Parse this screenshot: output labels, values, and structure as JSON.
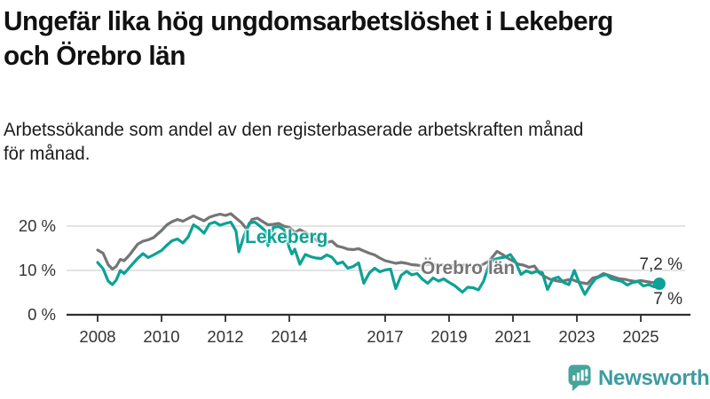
{
  "title": "Ungefär lika hög ungdomsarbetslöshet i Lekeberg\noch Örebro län",
  "subtitle": "Arbetssökande som andel av den registerbaserade arbetskraften månad\nför månad.",
  "branding": {
    "logo_text": "Newsworthy",
    "logo_icon": "bar-chart-speech-bubble"
  },
  "colors": {
    "lekeberg": "#0ca295",
    "orebro": "#757575",
    "grid": "#dadada",
    "axis": "#2e2e2e",
    "tick_text": "#333333",
    "logo_bubble": "#46a49b",
    "logo_wordmark": "#3e9ba2"
  },
  "chart_data": {
    "type": "line",
    "title": "Ungefär lika hög ungdomsarbetslöshet i Lekeberg och Örebro län",
    "subtitle": "Arbetssökande som andel av den registerbaserade arbetskraften månad för månad.",
    "unit": "%",
    "xlabel": "",
    "ylabel": "",
    "grid": "horizontal",
    "legend_position": "inline-labels",
    "xlim": [
      2007.0,
      2026.5
    ],
    "ylim": [
      0,
      24
    ],
    "x_ticks": [
      2008,
      2010,
      2012,
      2014,
      2017,
      2019,
      2021,
      2023,
      2025
    ],
    "y_ticks": [
      {
        "value": 0,
        "label": "0 %"
      },
      {
        "value": 10,
        "label": "10 %"
      },
      {
        "value": 20,
        "label": "20 %"
      }
    ],
    "series": [
      {
        "name": "Lekeberg",
        "color": "#0ca295",
        "end_label": "7 %",
        "latest_value": 7.0,
        "end_dot": true,
        "points": [
          [
            2008.0,
            11.8
          ],
          [
            2008.17,
            10.4
          ],
          [
            2008.33,
            7.6
          ],
          [
            2008.46,
            6.8
          ],
          [
            2008.58,
            7.8
          ],
          [
            2008.71,
            10.0
          ],
          [
            2008.83,
            9.3
          ],
          [
            2009.0,
            10.7
          ],
          [
            2009.25,
            12.7
          ],
          [
            2009.42,
            13.8
          ],
          [
            2009.58,
            12.9
          ],
          [
            2009.75,
            13.5
          ],
          [
            2010.0,
            14.5
          ],
          [
            2010.17,
            15.7
          ],
          [
            2010.33,
            16.7
          ],
          [
            2010.5,
            17.1
          ],
          [
            2010.67,
            16.2
          ],
          [
            2010.83,
            17.5
          ],
          [
            2011.0,
            20.3
          ],
          [
            2011.17,
            19.5
          ],
          [
            2011.33,
            18.4
          ],
          [
            2011.5,
            20.5
          ],
          [
            2011.67,
            20.9
          ],
          [
            2011.83,
            20.2
          ],
          [
            2012.0,
            20.6
          ],
          [
            2012.17,
            20.9
          ],
          [
            2012.33,
            18.9
          ],
          [
            2012.42,
            14.2
          ],
          [
            2012.58,
            17.8
          ],
          [
            2012.75,
            20.7
          ],
          [
            2012.92,
            20.9
          ],
          [
            2013.08,
            20.0
          ],
          [
            2013.25,
            18.9
          ],
          [
            2013.33,
            15.6
          ],
          [
            2013.5,
            19.7
          ],
          [
            2013.67,
            19.9
          ],
          [
            2013.83,
            19.2
          ],
          [
            2014.0,
            15.1
          ],
          [
            2014.08,
            13.7
          ],
          [
            2014.17,
            14.8
          ],
          [
            2014.33,
            11.4
          ],
          [
            2014.5,
            13.6
          ],
          [
            2014.67,
            13.1
          ],
          [
            2014.83,
            12.8
          ],
          [
            2015.0,
            12.7
          ],
          [
            2015.17,
            13.5
          ],
          [
            2015.33,
            13.0
          ],
          [
            2015.5,
            11.5
          ],
          [
            2015.67,
            11.9
          ],
          [
            2015.83,
            10.5
          ],
          [
            2016.0,
            10.9
          ],
          [
            2016.17,
            11.7
          ],
          [
            2016.33,
            7.1
          ],
          [
            2016.5,
            9.4
          ],
          [
            2016.67,
            10.5
          ],
          [
            2016.83,
            9.7
          ],
          [
            2017.0,
            10.1
          ],
          [
            2017.17,
            10.3
          ],
          [
            2017.33,
            5.9
          ],
          [
            2017.5,
            8.9
          ],
          [
            2017.67,
            9.8
          ],
          [
            2017.83,
            9.0
          ],
          [
            2018.0,
            9.3
          ],
          [
            2018.17,
            8.0
          ],
          [
            2018.33,
            7.1
          ],
          [
            2018.5,
            8.3
          ],
          [
            2018.67,
            7.6
          ],
          [
            2018.83,
            8.1
          ],
          [
            2019.0,
            7.3
          ],
          [
            2019.17,
            6.6
          ],
          [
            2019.42,
            5.1
          ],
          [
            2019.58,
            6.2
          ],
          [
            2019.75,
            6.1
          ],
          [
            2019.92,
            5.6
          ],
          [
            2020.08,
            7.6
          ],
          [
            2020.25,
            11.3
          ],
          [
            2020.42,
            12.5
          ],
          [
            2020.58,
            12.8
          ],
          [
            2020.75,
            13.0
          ],
          [
            2020.92,
            13.6
          ],
          [
            2021.08,
            11.9
          ],
          [
            2021.25,
            9.1
          ],
          [
            2021.42,
            9.9
          ],
          [
            2021.58,
            9.4
          ],
          [
            2021.75,
            9.8
          ],
          [
            2021.92,
            9.5
          ],
          [
            2022.08,
            5.7
          ],
          [
            2022.25,
            8.1
          ],
          [
            2022.42,
            8.5
          ],
          [
            2022.58,
            7.3
          ],
          [
            2022.75,
            6.8
          ],
          [
            2022.92,
            10.0
          ],
          [
            2023.08,
            7.1
          ],
          [
            2023.25,
            4.6
          ],
          [
            2023.42,
            6.6
          ],
          [
            2023.58,
            8.1
          ],
          [
            2023.75,
            8.7
          ],
          [
            2023.92,
            9.1
          ],
          [
            2024.08,
            8.1
          ],
          [
            2024.25,
            7.8
          ],
          [
            2024.42,
            7.5
          ],
          [
            2024.58,
            6.7
          ],
          [
            2024.75,
            7.3
          ],
          [
            2024.92,
            7.5
          ],
          [
            2025.08,
            6.5
          ],
          [
            2025.25,
            6.8
          ],
          [
            2025.42,
            6.3
          ],
          [
            2025.58,
            7.0
          ]
        ]
      },
      {
        "name": "Örebro län",
        "color": "#757575",
        "end_label": "7,2 %",
        "latest_value": 7.2,
        "end_dot": false,
        "points": [
          [
            2008.0,
            14.6
          ],
          [
            2008.17,
            13.9
          ],
          [
            2008.33,
            11.3
          ],
          [
            2008.46,
            10.3
          ],
          [
            2008.58,
            10.9
          ],
          [
            2008.71,
            12.5
          ],
          [
            2008.83,
            12.2
          ],
          [
            2009.0,
            13.5
          ],
          [
            2009.25,
            15.9
          ],
          [
            2009.42,
            16.6
          ],
          [
            2009.58,
            16.9
          ],
          [
            2009.75,
            17.4
          ],
          [
            2010.0,
            19.0
          ],
          [
            2010.17,
            20.3
          ],
          [
            2010.33,
            21.0
          ],
          [
            2010.5,
            21.5
          ],
          [
            2010.67,
            21.1
          ],
          [
            2010.83,
            21.7
          ],
          [
            2011.0,
            22.3
          ],
          [
            2011.17,
            21.7
          ],
          [
            2011.33,
            21.2
          ],
          [
            2011.5,
            22.0
          ],
          [
            2011.67,
            22.4
          ],
          [
            2011.83,
            22.7
          ],
          [
            2012.0,
            22.4
          ],
          [
            2012.17,
            22.8
          ],
          [
            2012.33,
            21.8
          ],
          [
            2012.5,
            20.8
          ],
          [
            2012.67,
            19.3
          ],
          [
            2012.83,
            21.5
          ],
          [
            2013.0,
            21.8
          ],
          [
            2013.17,
            21.0
          ],
          [
            2013.33,
            20.3
          ],
          [
            2013.5,
            20.4
          ],
          [
            2013.67,
            20.6
          ],
          [
            2013.83,
            20.0
          ],
          [
            2014.0,
            19.7
          ],
          [
            2014.17,
            18.6
          ],
          [
            2014.33,
            19.2
          ],
          [
            2014.5,
            18.6
          ],
          [
            2014.67,
            17.5
          ],
          [
            2014.83,
            17.0
          ],
          [
            2015.0,
            16.0
          ],
          [
            2015.17,
            16.3
          ],
          [
            2015.33,
            16.6
          ],
          [
            2015.5,
            15.5
          ],
          [
            2015.67,
            15.2
          ],
          [
            2015.83,
            14.8
          ],
          [
            2016.0,
            14.7
          ],
          [
            2016.17,
            14.9
          ],
          [
            2016.33,
            14.4
          ],
          [
            2016.5,
            13.9
          ],
          [
            2016.67,
            13.5
          ],
          [
            2016.83,
            12.8
          ],
          [
            2017.0,
            12.2
          ],
          [
            2017.17,
            11.9
          ],
          [
            2017.33,
            11.6
          ],
          [
            2017.5,
            11.8
          ],
          [
            2017.67,
            11.6
          ],
          [
            2017.83,
            11.3
          ],
          [
            2018.0,
            11.2
          ],
          [
            2018.17,
            11.0
          ],
          [
            2018.33,
            11.4
          ],
          [
            2018.5,
            11.3
          ],
          [
            2018.75,
            11.2
          ],
          [
            2019.0,
            11.1
          ],
          [
            2019.25,
            11.0
          ],
          [
            2019.5,
            11.2
          ],
          [
            2019.75,
            10.8
          ],
          [
            2020.0,
            11.1
          ],
          [
            2020.25,
            12.1
          ],
          [
            2020.5,
            14.3
          ],
          [
            2020.67,
            13.6
          ],
          [
            2020.83,
            12.8
          ],
          [
            2021.0,
            12.1
          ],
          [
            2021.17,
            11.4
          ],
          [
            2021.33,
            11.2
          ],
          [
            2021.5,
            10.7
          ],
          [
            2021.67,
            11.0
          ],
          [
            2021.83,
            9.4
          ],
          [
            2022.0,
            8.6
          ],
          [
            2022.17,
            8.0
          ],
          [
            2022.33,
            7.7
          ],
          [
            2022.5,
            7.5
          ],
          [
            2022.67,
            7.8
          ],
          [
            2022.83,
            8.0
          ],
          [
            2023.0,
            7.5
          ],
          [
            2023.17,
            7.2
          ],
          [
            2023.33,
            7.0
          ],
          [
            2023.5,
            8.3
          ],
          [
            2023.67,
            8.6
          ],
          [
            2023.83,
            9.3
          ],
          [
            2024.0,
            8.9
          ],
          [
            2024.17,
            8.5
          ],
          [
            2024.33,
            8.1
          ],
          [
            2024.5,
            8.0
          ],
          [
            2024.67,
            7.7
          ],
          [
            2024.83,
            7.5
          ],
          [
            2025.0,
            7.7
          ],
          [
            2025.17,
            7.5
          ],
          [
            2025.33,
            7.3
          ],
          [
            2025.58,
            7.2
          ]
        ]
      }
    ]
  }
}
